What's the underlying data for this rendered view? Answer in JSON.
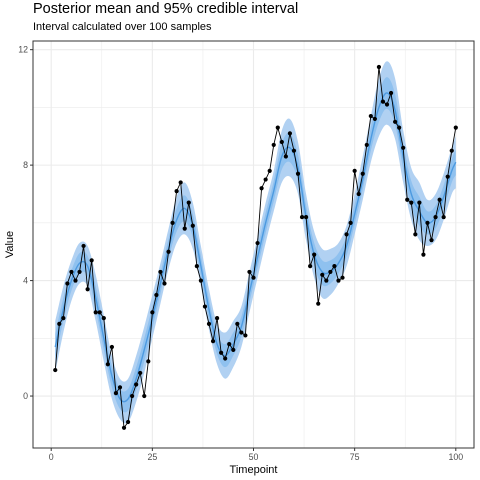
{
  "chart_data": {
    "type": "line",
    "title": "Posterior mean and 95% credible interval",
    "subtitle": "Interval calculated over 100 samples",
    "xlabel": "Timepoint",
    "ylabel": "Value",
    "xlim": [
      -4.5,
      104.5
    ],
    "ylim": [
      -1.8,
      12.3
    ],
    "xticks": [
      0,
      25,
      50,
      75,
      100
    ],
    "yticks": [
      0,
      4,
      8,
      12
    ],
    "grid": true,
    "colors": {
      "band": "#a3c9f0",
      "band_inner": "#78b6ec",
      "mean": "#4d9ae0",
      "observed": "#000000",
      "grid": "#ebebeb",
      "panel_border": "#333333"
    },
    "series": [
      {
        "kind": "observed",
        "x": [
          1,
          2,
          3,
          4,
          5,
          6,
          7,
          8,
          9,
          10,
          11,
          12,
          13,
          14,
          15,
          16,
          17,
          18,
          19,
          20,
          21,
          22,
          23,
          24,
          25,
          26,
          27,
          28,
          29,
          30,
          31,
          32,
          33,
          34,
          35,
          36,
          37,
          38,
          39,
          40,
          41,
          42,
          43,
          44,
          45,
          46,
          47,
          48,
          49,
          50,
          51,
          52,
          53,
          54,
          55,
          56,
          57,
          58,
          59,
          60,
          61,
          62,
          63,
          64,
          65,
          66,
          67,
          68,
          69,
          70,
          71,
          72,
          73,
          74,
          75,
          76,
          77,
          78,
          79,
          80,
          81,
          82,
          83,
          84,
          85,
          86,
          87,
          88,
          89,
          90,
          91,
          92,
          93,
          94,
          95,
          96,
          97,
          98,
          99,
          100
        ],
        "y": [
          0.9,
          2.5,
          2.7,
          3.9,
          4.3,
          4.0,
          4.3,
          5.2,
          3.7,
          4.7,
          2.9,
          2.9,
          2.7,
          1.1,
          1.7,
          0.1,
          0.3,
          -1.1,
          -0.9,
          0.0,
          0.4,
          0.8,
          0.0,
          1.2,
          2.9,
          3.5,
          4.3,
          3.9,
          5.0,
          6.0,
          7.1,
          7.4,
          5.8,
          6.7,
          5.9,
          4.5,
          4.0,
          3.1,
          2.5,
          1.9,
          2.7,
          1.5,
          1.3,
          1.8,
          1.6,
          2.5,
          2.2,
          2.1,
          4.3,
          4.1,
          5.3,
          7.2,
          7.5,
          7.8,
          8.7,
          9.3,
          8.8,
          8.3,
          9.1,
          8.5,
          7.7,
          6.2,
          6.2,
          4.5,
          4.9,
          3.2,
          4.2,
          4.0,
          4.3,
          4.5,
          4.0,
          4.1,
          5.6,
          6.0,
          7.8,
          7.0,
          7.7,
          8.7,
          9.7,
          9.6,
          11.4,
          10.2,
          10.1,
          10.5,
          9.5,
          9.3,
          8.6,
          6.8,
          6.7,
          5.6,
          6.7,
          4.9,
          6.0,
          5.4,
          6.2,
          6.8,
          6.2,
          7.6,
          8.5,
          9.3
        ]
      },
      {
        "kind": "posterior_mean",
        "x": [
          1,
          3,
          5,
          7,
          9,
          11,
          13,
          15,
          17,
          19,
          21,
          23,
          25,
          27,
          29,
          31,
          33,
          35,
          37,
          39,
          41,
          43,
          45,
          47,
          49,
          51,
          53,
          55,
          57,
          59,
          61,
          63,
          65,
          67,
          69,
          71,
          73,
          75,
          77,
          79,
          81,
          83,
          85,
          87,
          89,
          91,
          93,
          95,
          97,
          99,
          100
        ],
        "y": [
          1.7,
          3.0,
          4.0,
          4.6,
          4.5,
          3.4,
          2.0,
          0.7,
          -0.1,
          -0.1,
          0.6,
          1.6,
          2.7,
          3.9,
          5.1,
          6.1,
          6.5,
          5.9,
          4.5,
          3.0,
          1.8,
          1.4,
          1.8,
          2.4,
          3.6,
          4.8,
          6.0,
          7.1,
          8.3,
          8.6,
          7.9,
          6.2,
          4.9,
          4.3,
          4.3,
          4.6,
          5.2,
          6.3,
          7.5,
          8.9,
          10.0,
          10.5,
          9.9,
          8.3,
          7.0,
          6.4,
          6.0,
          6.2,
          6.9,
          7.8,
          8.1
        ]
      },
      {
        "kind": "interval_95",
        "x": [
          1,
          3,
          5,
          7,
          9,
          11,
          13,
          15,
          17,
          19,
          21,
          23,
          25,
          27,
          29,
          31,
          33,
          35,
          37,
          39,
          41,
          43,
          45,
          47,
          49,
          51,
          53,
          55,
          57,
          59,
          61,
          63,
          65,
          67,
          69,
          71,
          73,
          75,
          77,
          79,
          81,
          83,
          85,
          87,
          89,
          91,
          93,
          95,
          97,
          99,
          100
        ],
        "lower": [
          0.8,
          2.2,
          3.3,
          3.9,
          3.8,
          2.6,
          1.2,
          -0.1,
          -0.8,
          -0.9,
          -0.2,
          0.8,
          2.0,
          3.2,
          4.4,
          5.3,
          5.6,
          5.1,
          3.8,
          2.3,
          1.1,
          0.6,
          1.0,
          1.7,
          2.9,
          4.1,
          5.3,
          6.4,
          7.4,
          7.6,
          7.0,
          5.4,
          4.1,
          3.4,
          3.5,
          3.9,
          4.5,
          5.6,
          6.8,
          8.1,
          9.0,
          9.4,
          8.9,
          7.4,
          6.1,
          5.4,
          5.2,
          5.4,
          6.1,
          7.0,
          7.2
        ],
        "upper": [
          2.6,
          3.8,
          4.7,
          5.3,
          5.2,
          4.2,
          2.8,
          1.4,
          0.6,
          0.6,
          1.4,
          2.4,
          3.5,
          4.6,
          5.8,
          6.9,
          7.4,
          6.7,
          5.2,
          3.7,
          2.5,
          2.2,
          2.6,
          3.1,
          4.3,
          5.5,
          6.7,
          7.8,
          9.2,
          9.6,
          8.8,
          7.0,
          5.7,
          5.1,
          5.1,
          5.3,
          5.9,
          7.0,
          8.3,
          9.7,
          11.0,
          11.6,
          11.0,
          9.2,
          7.9,
          7.4,
          6.8,
          7.0,
          7.7,
          8.6,
          9.0
        ]
      }
    ]
  }
}
